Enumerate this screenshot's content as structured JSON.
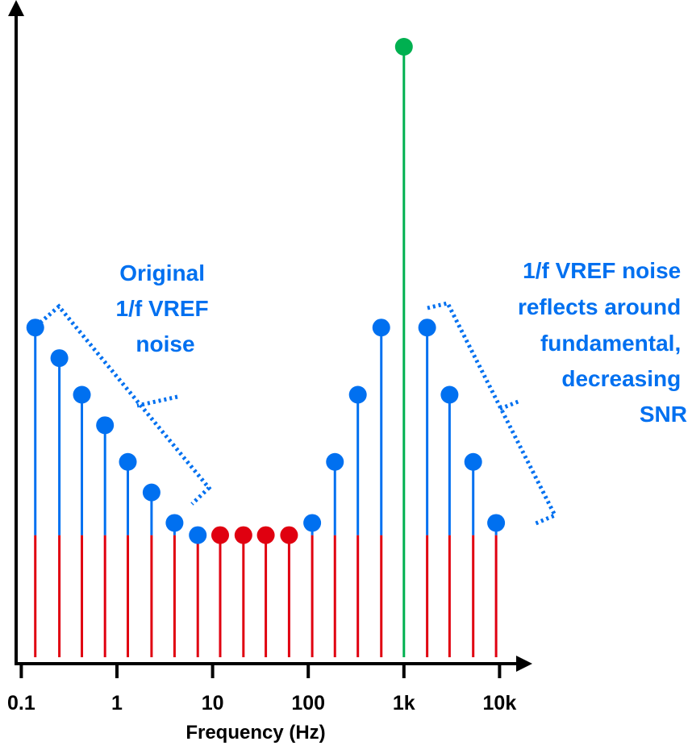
{
  "chart_data": {
    "type": "stem",
    "xscale": "log",
    "xlabel": "Frequency (Hz)",
    "ylabel": "",
    "x_ticks": [
      {
        "value": 0.1,
        "label": "0.1"
      },
      {
        "value": 1,
        "label": "1"
      },
      {
        "value": 10,
        "label": "10"
      },
      {
        "value": 100,
        "label": "100"
      },
      {
        "value": 1000,
        "label": "1k"
      },
      {
        "value": 10000,
        "label": "10k"
      }
    ],
    "noise_floor": 0.2,
    "ylim": [
      0,
      1
    ],
    "series": [
      {
        "role": "original_1f_noise",
        "color": "#0070f0",
        "points": [
          {
            "x": 0.14,
            "y": 0.54
          },
          {
            "x": 0.25,
            "y": 0.49
          },
          {
            "x": 0.43,
            "y": 0.43
          },
          {
            "x": 0.75,
            "y": 0.38
          },
          {
            "x": 1.3,
            "y": 0.32
          },
          {
            "x": 2.3,
            "y": 0.27
          },
          {
            "x": 4.0,
            "y": 0.22
          },
          {
            "x": 7.0,
            "y": 0.2
          }
        ]
      },
      {
        "role": "noise_floor_points",
        "color": "#e00010",
        "points": [
          {
            "x": 12,
            "y": 0.2
          },
          {
            "x": 21,
            "y": 0.2
          },
          {
            "x": 36,
            "y": 0.2
          },
          {
            "x": 63,
            "y": 0.2
          }
        ]
      },
      {
        "role": "reflected_1f_noise",
        "color": "#0070f0",
        "points": [
          {
            "x": 110,
            "y": 0.22
          },
          {
            "x": 190,
            "y": 0.32
          },
          {
            "x": 330,
            "y": 0.43
          },
          {
            "x": 580,
            "y": 0.54
          },
          {
            "x": 1750,
            "y": 0.54
          },
          {
            "x": 3000,
            "y": 0.43
          },
          {
            "x": 5300,
            "y": 0.32
          },
          {
            "x": 9200,
            "y": 0.22
          }
        ]
      },
      {
        "role": "fundamental",
        "color": "#00b050",
        "points": [
          {
            "x": 1000,
            "y": 1.0
          }
        ]
      }
    ],
    "noise_floor_color": "#e00010",
    "annotations": {
      "left": {
        "lines": [
          "Original",
          "1/f VREF",
          "noise"
        ],
        "color": "#0070f0"
      },
      "right": {
        "lines": [
          "1/f VREF noise",
          "reflects around",
          "fundamental,",
          "decreasing",
          "SNR"
        ],
        "color": "#0070f0"
      }
    }
  }
}
